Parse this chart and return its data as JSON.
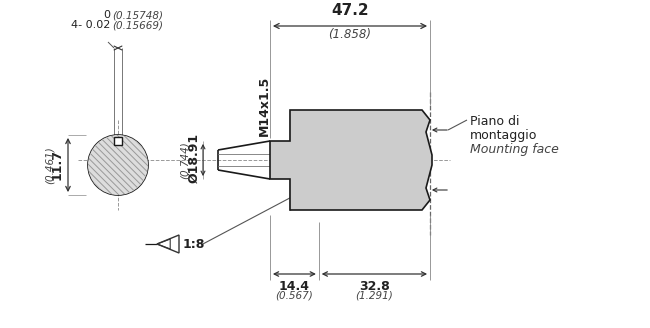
{
  "bg_color": "#ffffff",
  "line_color": "#1a1a1a",
  "shaft_fill": "#cccccc",
  "text_bold_color": "#222222",
  "text_italic_color": "#444444",
  "dim_line_color": "#333333",
  "center_line_color": "#999999",
  "leader_line_color": "#555555",
  "labels": {
    "main_dim": "47.2",
    "main_dim_in": "(1.858)",
    "seg1": "14.4",
    "seg1_in": "(0.567)",
    "seg2": "32.8",
    "seg2_in": "(1.291)",
    "diameter": "Ø18.91",
    "diameter_in": "(0.744)",
    "vert_dim": "11.7",
    "vert_dim_in": "(0.461)",
    "tol_top": "0",
    "tol_bot": "4- 0.02",
    "tol_top_in": "(0.15748)",
    "tol_bot_in": "(0.15669)",
    "thread": "M14x1.5",
    "taper": "1:8",
    "annotation_line1": "Piano di",
    "annotation_line2": "montaggio",
    "annotation_line3": "Mounting face"
  }
}
